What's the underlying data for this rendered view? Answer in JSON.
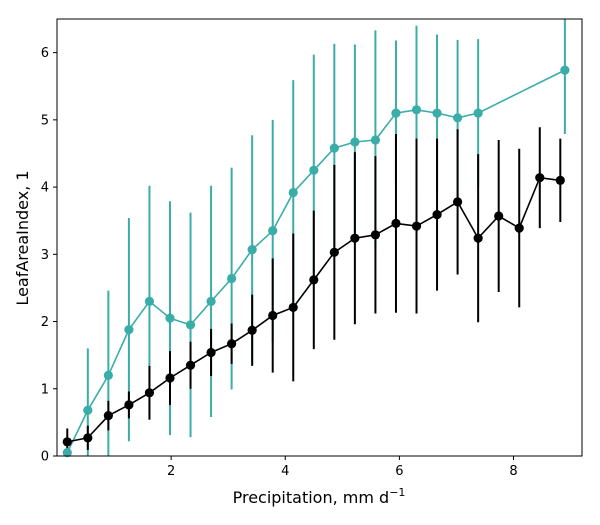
{
  "chart_data": {
    "type": "line",
    "xlabel": "Precipitation,  mm d",
    "xlabel_sup": "−1",
    "ylabel": "LeafAreaIndex,  1",
    "xlim": [
      0,
      9.2
    ],
    "ylim": [
      0,
      6.5
    ],
    "xticks": [
      2,
      4,
      6,
      8
    ],
    "yticks": [
      0,
      1,
      2,
      3,
      4,
      5,
      6
    ],
    "grid": false,
    "series": [
      {
        "color": "#3aada8",
        "x": [
          0.18,
          0.54,
          0.9,
          1.26,
          1.62,
          1.98,
          2.34,
          2.7,
          3.06,
          3.42,
          3.78,
          4.14,
          4.5,
          4.86,
          5.22,
          5.58,
          5.94,
          6.3,
          6.66,
          7.02,
          7.38,
          8.9
        ],
        "y": [
          0.05,
          0.68,
          1.2,
          1.88,
          2.3,
          2.05,
          1.95,
          2.3,
          2.64,
          3.07,
          3.35,
          3.92,
          4.25,
          4.58,
          4.67,
          4.7,
          5.1,
          5.15,
          5.1,
          5.03,
          5.1,
          5.74
        ],
        "err": [
          0.0,
          0.92,
          1.26,
          1.66,
          1.72,
          1.74,
          1.67,
          1.72,
          1.65,
          1.7,
          1.65,
          1.67,
          1.72,
          1.55,
          1.45,
          1.63,
          1.08,
          1.25,
          1.17,
          1.16,
          1.1,
          0.95
        ]
      },
      {
        "color": "#000000",
        "x": [
          0.18,
          0.54,
          0.9,
          1.26,
          1.62,
          1.98,
          2.34,
          2.7,
          3.06,
          3.42,
          3.78,
          4.14,
          4.5,
          4.86,
          5.22,
          5.58,
          5.94,
          6.3,
          6.66,
          7.02,
          7.38,
          7.74,
          8.1,
          8.46,
          8.82
        ],
        "y": [
          0.21,
          0.27,
          0.6,
          0.76,
          0.94,
          1.16,
          1.35,
          1.54,
          1.67,
          1.87,
          2.09,
          2.21,
          2.62,
          3.03,
          3.24,
          3.29,
          3.46,
          3.42,
          3.59,
          3.78,
          3.24,
          3.57,
          3.39,
          4.14,
          4.1
        ],
        "err": [
          0.2,
          0.18,
          0.22,
          0.2,
          0.4,
          0.4,
          0.35,
          0.35,
          0.3,
          0.53,
          0.85,
          1.1,
          1.03,
          1.3,
          1.28,
          1.17,
          1.33,
          1.3,
          1.13,
          1.08,
          1.25,
          1.13,
          1.18,
          0.75,
          0.62
        ]
      }
    ]
  }
}
